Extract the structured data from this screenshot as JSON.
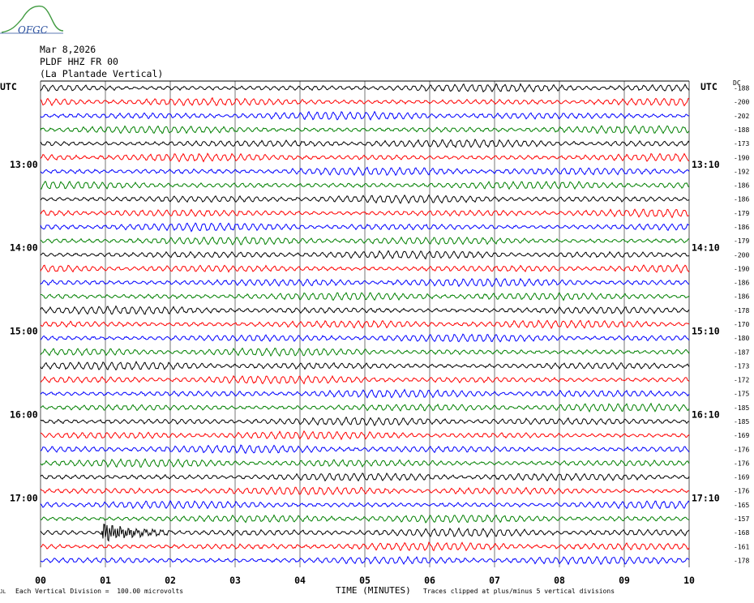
{
  "header": {
    "logo_text": "OFGC",
    "date": "Mar 8,2026",
    "station": "PLDF HHZ FR 00",
    "site": "(La Plantade Vertical)",
    "utc_left": "UTC",
    "utc_right": "UTC",
    "dc_label": "DC"
  },
  "footer": {
    "scale_note": "Each Vertical Division =  100.00 microvolts",
    "clip_note": "Traces clipped at plus/minus 5 vertical divisions",
    "corner_mark": "JL"
  },
  "chart_data": {
    "type": "line",
    "title": "",
    "xlabel": "TIME (MINUTES)",
    "ylabel": "",
    "x_ticks": [
      "00",
      "01",
      "02",
      "03",
      "04",
      "05",
      "06",
      "07",
      "08",
      "09",
      "10"
    ],
    "xlim": [
      0,
      10
    ],
    "grid": true,
    "trace_colors": [
      "#000000",
      "#ff0000",
      "#0000ff",
      "#008000"
    ],
    "left_time_labels": [
      {
        "row": 6,
        "text": "13:00"
      },
      {
        "row": 12,
        "text": "14:00"
      },
      {
        "row": 18,
        "text": "15:00"
      },
      {
        "row": 24,
        "text": "16:00"
      },
      {
        "row": 30,
        "text": "17:00"
      }
    ],
    "right_time_labels": [
      {
        "row": 6,
        "text": "13:10"
      },
      {
        "row": 12,
        "text": "14:10"
      },
      {
        "row": 18,
        "text": "15:10"
      },
      {
        "row": 24,
        "text": "16:10"
      },
      {
        "row": 30,
        "text": "17:10"
      }
    ],
    "dc_offsets": [
      -188,
      -200,
      -202,
      -188,
      -173,
      -190,
      -192,
      -186,
      -186,
      -179,
      -186,
      -179,
      -200,
      -190,
      -186,
      -186,
      -178,
      -170,
      -180,
      -187,
      -173,
      -172,
      -175,
      -185,
      -185,
      -169,
      -176,
      -176,
      -169,
      -176,
      -165,
      -157,
      -168,
      -161,
      -178
    ],
    "event_trace": {
      "row": 32,
      "start_minute": 0.95,
      "end_minute": 2.0
    }
  }
}
